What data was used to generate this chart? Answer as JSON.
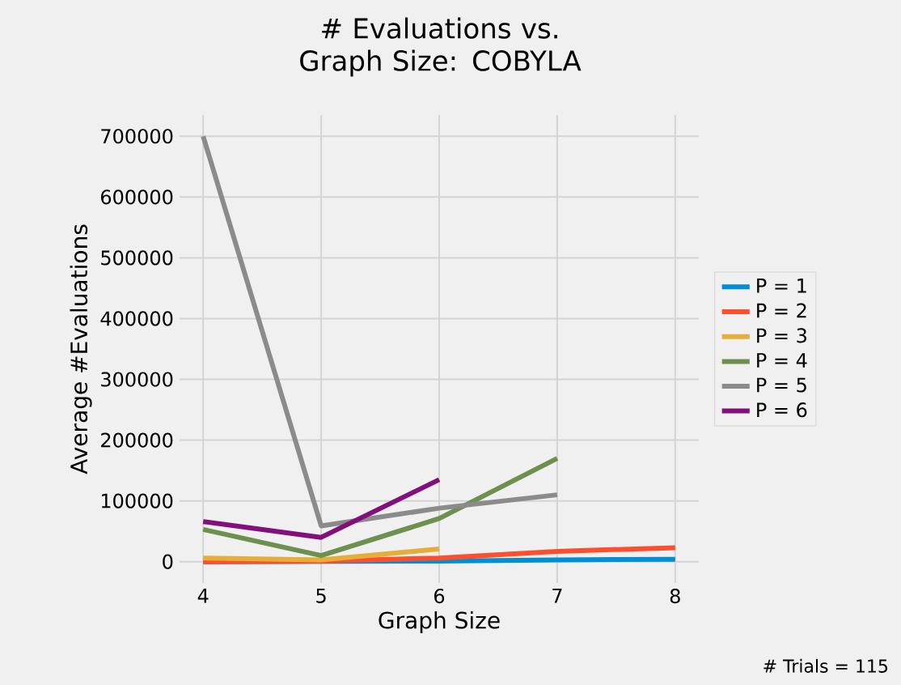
{
  "chart_data": {
    "type": "line",
    "title": "# Evaluations vs. Graph Size: COBYLA",
    "xlabel": "Graph Size",
    "ylabel": "Average #Evaluations",
    "annotations": [
      "# Trials = 115"
    ],
    "series": [
      {
        "name": "P = 1",
        "color": "#008fd5",
        "x": [
          4,
          5,
          6,
          7,
          8
        ],
        "values": [
          0,
          null,
          1000,
          3000,
          4000
        ]
      },
      {
        "name": "P = 2",
        "color": "#fc4f30",
        "x": [
          4,
          5,
          6,
          7,
          8
        ],
        "values": [
          0,
          1000,
          6000,
          17000,
          23000
        ]
      },
      {
        "name": "P = 3",
        "color": "#e5ae38",
        "x": [
          4,
          5,
          6
        ],
        "values": [
          6000,
          3000,
          21000
        ]
      },
      {
        "name": "P = 4",
        "color": "#6d904f",
        "x": [
          4,
          5,
          6,
          7
        ],
        "values": [
          53000,
          10000,
          71000,
          170000
        ]
      },
      {
        "name": "P = 5",
        "color": "#8b8b8b",
        "x": [
          4,
          5,
          6,
          7
        ],
        "values": [
          700000,
          59000,
          88000,
          110000
        ]
      },
      {
        "name": "P = 6",
        "color": "#810f7c",
        "x": [
          4,
          5,
          6
        ],
        "values": [
          66000,
          40000,
          135000
        ]
      }
    ],
    "xlim": [
      3.8,
      8.2
    ],
    "ylim": [
      -35000,
      735000
    ],
    "xticks": [
      4,
      5,
      6,
      7,
      8
    ],
    "yticks": [
      0,
      100000,
      200000,
      300000,
      400000,
      500000,
      600000,
      700000
    ],
    "grid": true,
    "legend": "right",
    "marker": "none",
    "line_style": "solid"
  }
}
